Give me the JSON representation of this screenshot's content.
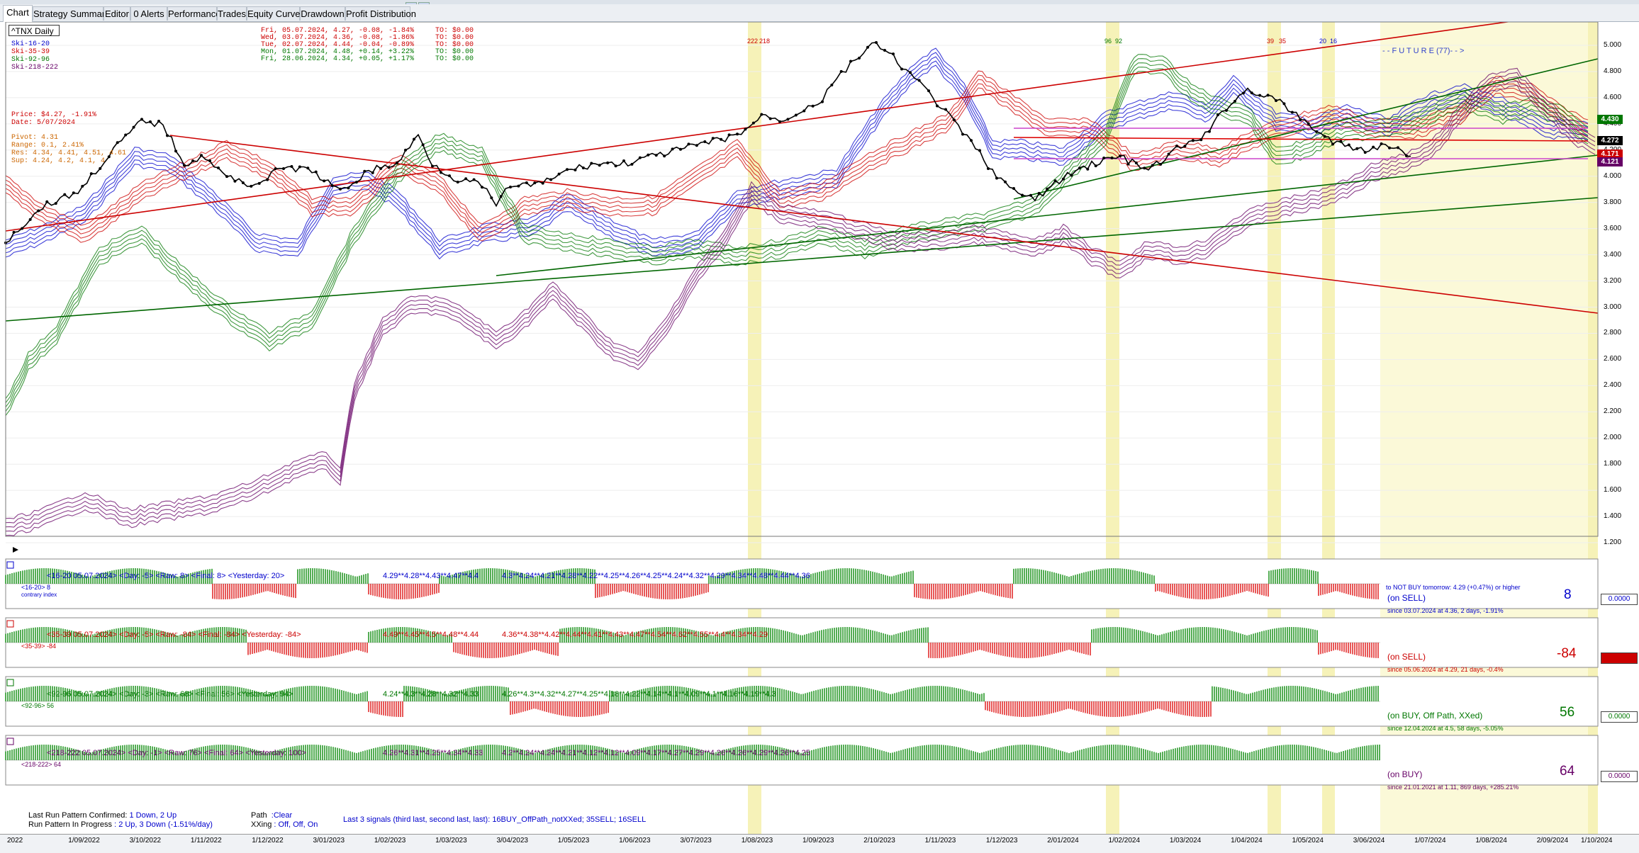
{
  "tabs": [
    "Chart",
    "Strategy Summary",
    "Editor",
    "0 Alerts",
    "Performance",
    "Trades",
    "Equity Curve",
    "Drawdown",
    "Profit Distribution"
  ],
  "ticker": "^TNX Daily",
  "legend": [
    "Ski-16-20",
    "Ski-35-39",
    "Ski-92-96",
    "Ski-218-222"
  ],
  "legend_colors": [
    "#0000cc",
    "#cc0000",
    "#007700",
    "#660066"
  ],
  "info_lines": [
    "Price: $4.27, -1.91%",
    "Date: 5/07/2024",
    "Pivot: 4.31",
    "Range: 0.1, 2.41%",
    "Res: 4.34, 4.41, 4.51, 4.61",
    "Sup: 4.24, 4.2, 4.1, 4"
  ],
  "recent_quotes": [
    "Fri, 05.07.2024, 4.27, -0.08, -1.84%     TO: $0.00",
    "Wed, 03.07.2024, 4.36, -0.08, -1.86%     TO: $0.00",
    "Tue, 02.07.2024, 4.44, -0.04, -0.89%     TO: $0.00",
    "Mon, 01.07.2024, 4.48, +0.14, +3.22%     TO: $0.00",
    "Fri, 28.06.2024, 4.34, +0.05, +1.17%     TO: $0.00"
  ],
  "cycle_markers": [
    "222",
    "218",
    "96",
    "92",
    "39",
    "35",
    "20",
    "16"
  ],
  "future_label": "- - F U T U R E (77)- - >",
  "y_axis": [
    "5.000",
    "4.800",
    "4.600",
    "4.400",
    "4.200",
    "4.000",
    "3.800",
    "3.600",
    "3.400",
    "3.200",
    "3.000",
    "2.800",
    "2.600",
    "2.400",
    "2.200",
    "2.000",
    "1.800",
    "1.600",
    "1.400",
    "1.200"
  ],
  "price_boxes": [
    {
      "text": "4.430",
      "color": "#007700"
    },
    {
      "text": "4.272",
      "color": "#000000"
    },
    {
      "text": "4.171",
      "color": "#cc0000"
    },
    {
      "text": "4.121",
      "color": "#660066"
    }
  ],
  "indicator_panels": [
    {
      "header": "<16-20  05.07.2024>  <Day: -5>  <Raw: 8>  <Final: 8>  <Yesterday: 20>",
      "sub": "<16-20>  8",
      "sub2": "contrary index",
      "levels": "4.29**4.28**4.43**4.47**4.4",
      "levels2": "4.3**4.24**4.21**4.28**4.22**4.25**4.26**4.25**4.24**4.32**4.29**4.34**4.48**4.44**4.36",
      "status": "(on SELL)",
      "note": "to NOT BUY tomorrow: 4.29 (+0.47%) or higher",
      "since": "since 03.07.2024 at 4.36, 2 days, -1.91%",
      "value": "8",
      "value_color": "#0000cc",
      "box": "0.0000",
      "box_color": "#0000cc"
    },
    {
      "header": "<35-39  05.07.2024>  <Day: -5>  <Raw: -84>  <Final: -84>  <Yesterday: -84>",
      "sub": "<35-39>  -84",
      "sub2": "",
      "levels": "4.49**4.45**4.5**4.48**4.44",
      "levels2": "4.36**4.38**4.42**4.44**4.41**4.43**4.47**4.54**4.62**4.55**4.4**4.34**4.29",
      "status": "(on SELL)",
      "note": "",
      "since": "since 05.06.2024 at 4.29, 21 days, -0.4%",
      "value": "-84",
      "value_color": "#cc0000",
      "box": "0.0000",
      "box_color": "#cc0000"
    },
    {
      "header": "<92-96  05.07.2024>  <Day: -3>  <Raw: 68>  <Final: 56>  <Yesterday: 94>",
      "sub": "<92-96>  56",
      "sub2": "",
      "levels": "4.24**4.3**4.28**4.32**4.33",
      "levels2": "4.26**4.3**4.32**4.27**4.25**4.18**4.22**4.14**4.1**4.09**4.1**4.16**4.19**4.3",
      "status": "(on BUY, Off Path, XXed)",
      "note": "",
      "since": "since 12.04.2024 at 4.5, 58 days, -5.05%",
      "value": "56",
      "value_color": "#007700",
      "box": "0.0000",
      "box_color": "#007700"
    },
    {
      "header": "<218-222  05.07.2024>  <Day: -1>  <Raw: 76>  <Final: 64>  <Yesterday: 100>",
      "sub": "<218-222>  64",
      "sub2": "",
      "levels": "4.26**4.31**4.25**4.34**4.33",
      "levels2": "4.2**4.24**4.24**4.21**4.12**4.12**4.09**4.17**4.27**4.29**4.26**4.26**4.29**4.26**4.25",
      "status": "(on BUY)",
      "note": "",
      "since": "since 21.01.2021 at 1.11, 869 days, +285.21%",
      "value": "64",
      "value_color": "#660066",
      "box": "0.0000",
      "box_color": "#660066"
    }
  ],
  "pattern": {
    "confirmed_label": "Last Run Pattern Confirmed:",
    "confirmed_value": "1 Down, 2 Up",
    "progress_label": "Run Pattern In Progress",
    "progress_value": ": 2 Up, 3 Down  (-1.51%/day)",
    "path_label": "Path",
    "path_value": ":Clear",
    "xxing_label": "XXing",
    "xxing_value": ": Off, Off, On",
    "last_signals": "Last 3 signals (third last, second last, last): 16BUY_OffPath_notXXed;  35SELL;  16SELL"
  },
  "x_axis": [
    "2022",
    "1/09/2022",
    "3/10/2022",
    "1/11/2022",
    "1/12/2022",
    "3/01/2023",
    "1/02/2023",
    "1/03/2023",
    "3/04/2023",
    "1/05/2023",
    "1/06/2023",
    "3/07/2023",
    "1/08/2023",
    "1/09/2023",
    "2/10/2023",
    "1/11/2023",
    "1/12/2023",
    "2/01/2024",
    "1/02/2024",
    "1/03/2024",
    "1/04/2024",
    "1/05/2024",
    "3/06/2024",
    "1/07/2024",
    "1/08/2024",
    "2/09/2024",
    "1/10/2024"
  ]
}
